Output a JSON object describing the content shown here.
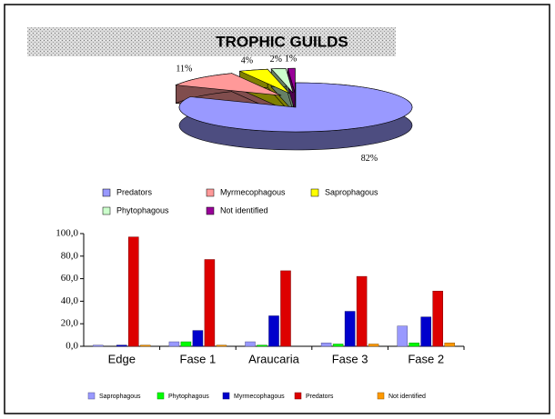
{
  "chart_data": [
    {
      "type": "pie",
      "title": "TROPHIC GUILDS",
      "categories": [
        "Predators",
        "Myrmecophagous",
        "Saprophagous",
        "Phytophagous",
        "Not identified"
      ],
      "values": [
        82,
        11,
        4,
        2,
        1
      ],
      "value_labels": [
        "82%",
        "11%",
        "4%",
        "2%",
        "1%"
      ],
      "colors": [
        "#9999ff",
        "#ff9999",
        "#ffff00",
        "#ccffcc",
        "#990099"
      ],
      "legend": "bottom"
    },
    {
      "type": "bar",
      "categories": [
        "Edge",
        "Fase 1",
        "Araucaria",
        "Fase 3",
        "Fase 2"
      ],
      "series": [
        {
          "name": "Saprophagous",
          "color": "#9999ff",
          "values": [
            1,
            4,
            4,
            3,
            18
          ]
        },
        {
          "name": "Phytophagous",
          "color": "#00ff00",
          "values": [
            0,
            4,
            1,
            2,
            3
          ]
        },
        {
          "name": "Myrmecophagous",
          "color": "#0000cc",
          "values": [
            1,
            14,
            27,
            31,
            26
          ]
        },
        {
          "name": "Predators",
          "color": "#dd0000",
          "values": [
            97,
            77,
            67,
            62,
            49
          ]
        },
        {
          "name": "Not identified",
          "color": "#ff9900",
          "values": [
            1,
            1,
            0,
            2,
            3
          ]
        }
      ],
      "ylim": [
        0,
        100
      ],
      "yticks": [
        {
          "value": 0,
          "label": "0,0"
        },
        {
          "value": 20,
          "label": "20,0"
        },
        {
          "value": 40,
          "label": "40,0"
        },
        {
          "value": 60,
          "label": "60,0"
        },
        {
          "value": 80,
          "label": "80,0"
        },
        {
          "value": 100,
          "label": "100,0"
        }
      ],
      "grid": false,
      "legend": "bottom"
    }
  ]
}
